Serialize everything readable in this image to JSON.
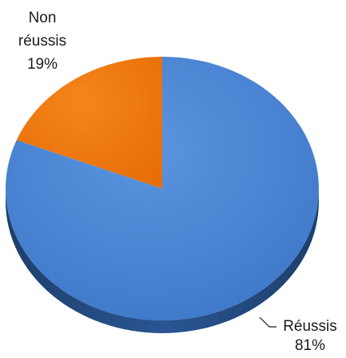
{
  "chart_data": {
    "type": "pie",
    "title": "",
    "categories": [
      "Réussis",
      "Non réussis"
    ],
    "values": [
      81,
      19
    ],
    "percent_labels": [
      "81%",
      "19%"
    ],
    "label_lines": [
      [
        "Réussis",
        "81%"
      ],
      [
        "Non",
        "réussis",
        "19%"
      ]
    ],
    "colors": [
      "#4a86d6",
      "#f07a10"
    ],
    "style": "3d-tilted",
    "legend": "none"
  }
}
